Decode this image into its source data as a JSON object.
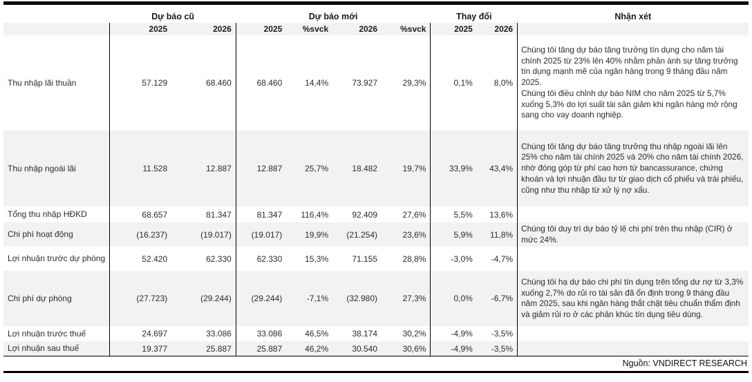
{
  "table": {
    "column_groups": {
      "old": "Dự báo cũ",
      "new": "Dự báo mới",
      "change": "Thay đổi",
      "comment": "Nhận xét"
    },
    "subheaders": [
      "2025",
      "2026",
      "2025",
      "%svck",
      "2026",
      "%svck",
      "2025",
      "2026"
    ],
    "rows": [
      {
        "label": "Thu nhập lãi thuần",
        "values": [
          "57.129",
          "68.460",
          "68.460",
          "14,4%",
          "73.927",
          "29,3%",
          "0,1%",
          "8,0%"
        ],
        "comment": "Chúng tôi tăng dự báo tăng trưởng tín dụng cho năm tài chính 2025 từ 23% lên 40% nhằm phản ánh sự tăng trưởng tín dụng mạnh mẽ của ngân hàng trong 9 tháng đầu năm 2025.\nChúng tôi điều chỉnh dự báo NIM cho năm 2025 từ 5,7% xuống 5,3% do lợi suất tài sản giảm khi ngân hàng mở rộng sang cho vay doanh nghiệp."
      },
      {
        "label": "Thu nhập ngoài lãi",
        "values": [
          "11.528",
          "12.887",
          "12.887",
          "25,7%",
          "18.482",
          "19,7%",
          "33,9%",
          "43,4%"
        ],
        "comment": "Chúng tôi tăng dự báo tăng trưởng thu nhập ngoài lãi lên 25% cho năm tài chính 2025 và 20% cho năm tài chính 2026, nhờ đóng góp từ phí cao hơn từ bancassurance, chứng khoán và lợi nhuận đầu tư từ giao dịch cổ phiếu và trái phiếu, cũng như thu nhập từ xử lý nợ xấu."
      },
      {
        "label": "Tổng thu nhập HĐKD",
        "values": [
          "68.657",
          "81.347",
          "81.347",
          "116,4%",
          "92.409",
          "27,6%",
          "5,5%",
          "13,6%"
        ],
        "comment": ""
      },
      {
        "label": "Chi phí hoạt động",
        "values": [
          "(16.237)",
          "(19.017)",
          "(19.017)",
          "19,9%",
          "(21.254)",
          "23,6%",
          "5,9%",
          "11,8%"
        ],
        "comment": "Chúng tôi duy trì dự báo tỷ lệ chi phí trên thu nhập (CIR) ở mức 24%."
      },
      {
        "label": "Lợi nhuận trước dự phòng",
        "values": [
          "52.420",
          "62.330",
          "62.330",
          "15,3%",
          "71.155",
          "28,8%",
          "-3,0%",
          "-4,7%"
        ],
        "comment": ""
      },
      {
        "label": "Chi phí dự phòng",
        "values": [
          "(27.723)",
          "(29.244)",
          "(29.244)",
          "-7,1%",
          "(32.980)",
          "27,3%",
          "0,0%",
          "-6,7%"
        ],
        "comment": "Chúng tôi hạ dự báo chi phí tín dụng trên tổng dư nợ từ 3,3% xuống 2,7% do rủi ro tài sản đã ổn định trong 9 tháng đầu năm 2025, sau khi ngân hàng thắt chặt tiêu chuẩn thẩm định và giảm rủi ro ở các phân khúc tín dụng tiêu dùng."
      },
      {
        "label": "Lợi nhuận trước thuế",
        "values": [
          "24.697",
          "33.086",
          "33.086",
          "46,5%",
          "38.174",
          "30,2%",
          "-4,9%",
          "-3,5%"
        ],
        "comment": ""
      },
      {
        "label": "Lợi nhuận sau thuế",
        "values": [
          "19.377",
          "25.887",
          "25.887",
          "46,2%",
          "30.540",
          "30,6%",
          "-4,9%",
          "-3,5%"
        ],
        "comment": ""
      }
    ]
  },
  "footer": {
    "source": "Nguồn: VNDIRECT RESEARCH"
  },
  "colors": {
    "row_alt": "#f2f2f2",
    "rule": "#000000",
    "text": "#262626"
  }
}
